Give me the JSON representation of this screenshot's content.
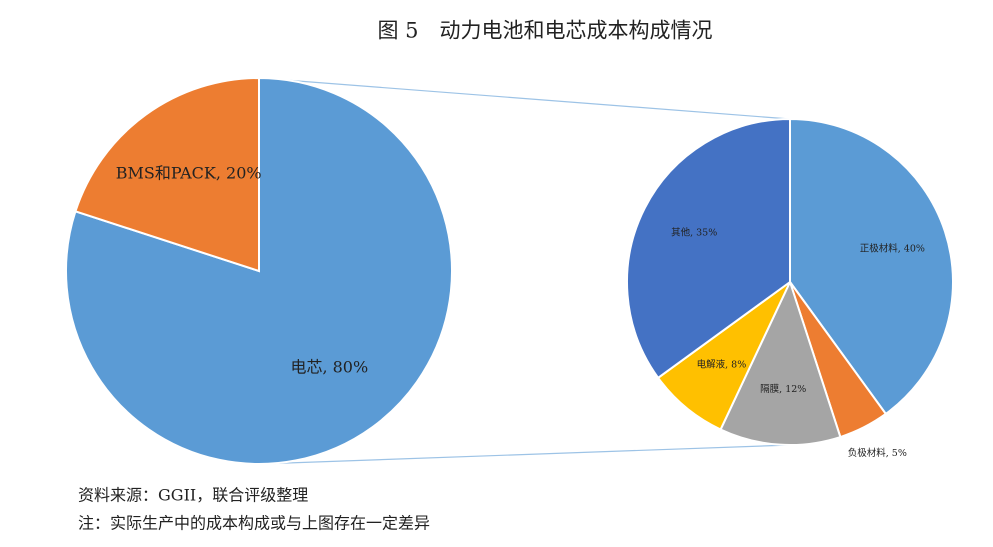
{
  "title": "图 5　动力电池和电芯成本构成情况",
  "notes": [
    "资料来源：GGII，联合评级整理",
    "注：实际生产中的成本构成或与上图存在一定差异"
  ],
  "chart_data": [
    {
      "type": "pie",
      "values": [
        80,
        20
      ],
      "value_labels": [
        "电芯, 80%",
        "BMS和PACK, 20%"
      ],
      "colors": [
        "#5b9bd5",
        "#ed7d31"
      ]
    },
    {
      "type": "pie",
      "values": [
        40,
        5,
        12,
        8,
        35
      ],
      "value_labels": [
        "正极材料, 40%",
        "负极材料, 5%",
        "隔膜, 12%",
        "电解液, 8%",
        "其他, 35%"
      ],
      "colors": [
        "#5b9bd5",
        "#ed7d31",
        "#a5a5a5",
        "#ffc000",
        "#4472c4"
      ]
    }
  ]
}
